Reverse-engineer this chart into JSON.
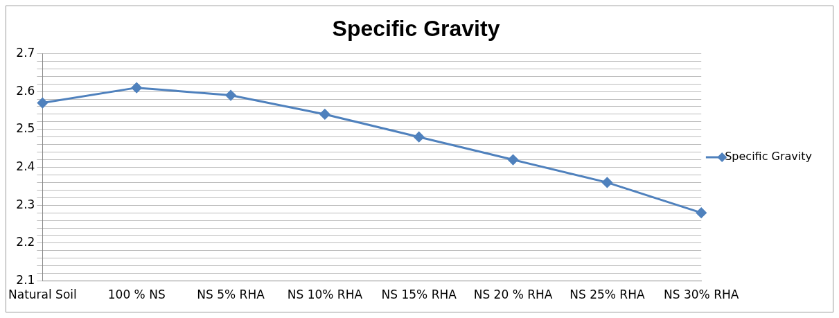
{
  "chart_data": {
    "type": "line",
    "title": "Specific Gravity",
    "categories": [
      "Natural Soil",
      "100 % NS",
      "NS 5% RHA",
      "NS 10% RHA",
      "NS 15% RHA",
      "NS 20 % RHA",
      "NS 25% RHA",
      "NS 30% RHA"
    ],
    "series": [
      {
        "name": "Specific Gravity",
        "color": "#4f81bd",
        "values": [
          2.57,
          2.61,
          2.59,
          2.54,
          2.48,
          2.42,
          2.36,
          2.28
        ]
      }
    ],
    "ylim": [
      2.1,
      2.7
    ],
    "yticks": [
      2.1,
      {
        "value": 2.12,
        "label": null
      },
      {
        "value": 2.14,
        "label": null
      },
      {
        "value": 2.16,
        "label": null
      },
      {
        "value": 2.18,
        "label": null
      },
      2.2,
      {
        "value": 2.22,
        "label": null
      },
      {
        "value": 2.24,
        "label": null
      },
      {
        "value": 2.26,
        "label": null
      },
      {
        "value": 2.28,
        "label": null
      },
      2.3,
      {
        "value": 2.32,
        "label": null
      },
      {
        "value": 2.34,
        "label": null
      },
      {
        "value": 2.36,
        "label": null
      },
      {
        "value": 2.38,
        "label": null
      },
      2.4,
      {
        "value": 2.42,
        "label": null
      },
      {
        "value": 2.44,
        "label": null
      },
      {
        "value": 2.46,
        "label": null
      },
      {
        "value": 2.48,
        "label": null
      },
      2.5,
      {
        "value": 2.52,
        "label": null
      },
      {
        "value": 2.54,
        "label": null
      },
      {
        "value": 2.56,
        "label": null
      },
      {
        "value": 2.58,
        "label": null
      },
      2.6,
      {
        "value": 2.62,
        "label": null
      },
      {
        "value": 2.64,
        "label": null
      },
      {
        "value": 2.66,
        "label": null
      },
      {
        "value": 2.68,
        "label": null
      },
      2.7
    ],
    "grid": "y",
    "legend": "right",
    "marker": "diamond",
    "line_style": "solid"
  }
}
